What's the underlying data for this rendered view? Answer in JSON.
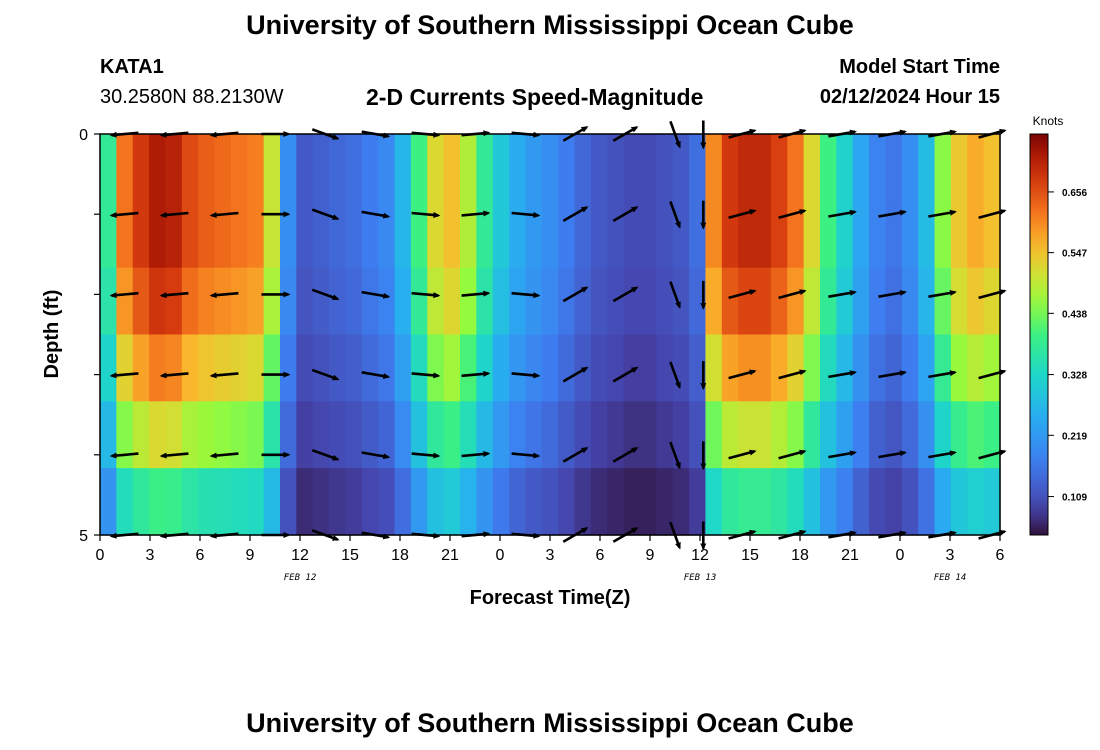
{
  "header": {
    "title": "University of Southern Mississippi Ocean Cube",
    "station": "KATA1",
    "coordinates": "30.2580N  88.2130W",
    "subtitle": "2-D Currents Speed-Magnitude",
    "start_label": "Model Start Time",
    "start_value": "02/12/2024 Hour 15"
  },
  "footer": {
    "title": "University of Southern Mississippi Ocean Cube"
  },
  "chart_data": {
    "type": "heatmap",
    "title": "2-D Currents Speed-Magnitude",
    "xlabel": "Forecast Time(Z)",
    "ylabel": "Depth (ft)",
    "x_tick_labels": [
      "0",
      "3",
      "6",
      "9",
      "12",
      "15",
      "18",
      "21",
      "0",
      "3",
      "6",
      "9",
      "12",
      "15",
      "18",
      "21",
      "0",
      "3",
      "6"
    ],
    "x_range_hours": [
      0,
      54
    ],
    "date_labels": [
      {
        "label": "FEB 12",
        "hour": 12
      },
      {
        "label": "FEB 13",
        "hour": 36
      },
      {
        "label": "FEB 14",
        "hour": 51
      }
    ],
    "y_tick_labels": [
      "0",
      "5"
    ],
    "y_range_ft": [
      0,
      5
    ],
    "depth_levels_ft": [
      0,
      1,
      2,
      3,
      4,
      5
    ],
    "colorbar": {
      "unit": "Knots",
      "tick_values": [
        "0.656",
        "0.547",
        "0.438",
        "0.328",
        "0.219",
        "0.109"
      ],
      "range": [
        0.04,
        0.76
      ]
    },
    "hours": [
      0,
      1,
      2,
      3,
      4,
      5,
      6,
      7,
      8,
      9,
      10,
      11,
      12,
      13,
      14,
      15,
      16,
      17,
      18,
      19,
      20,
      21,
      22,
      23,
      24,
      25,
      26,
      27,
      28,
      29,
      30,
      31,
      32,
      33,
      34,
      35,
      36,
      37,
      38,
      39,
      40,
      41,
      42,
      43,
      44,
      45,
      46,
      47,
      48,
      49,
      50,
      51,
      52,
      53,
      54
    ],
    "speed_profile_knots": [
      0.38,
      0.62,
      0.68,
      0.72,
      0.71,
      0.66,
      0.64,
      0.63,
      0.62,
      0.61,
      0.5,
      0.2,
      0.12,
      0.13,
      0.14,
      0.15,
      0.17,
      0.19,
      0.27,
      0.4,
      0.52,
      0.55,
      0.48,
      0.38,
      0.3,
      0.25,
      0.22,
      0.2,
      0.17,
      0.14,
      0.12,
      0.11,
      0.1,
      0.1,
      0.11,
      0.12,
      0.15,
      0.6,
      0.68,
      0.7,
      0.7,
      0.67,
      0.62,
      0.52,
      0.4,
      0.32,
      0.24,
      0.18,
      0.16,
      0.2,
      0.28,
      0.45,
      0.54,
      0.57,
      0.55
    ],
    "depth_factor": [
      1.0,
      1.0,
      0.95,
      0.85,
      0.72,
      0.55
    ],
    "arrow_hours": [
      1.5,
      4.5,
      7.5,
      10.5,
      13.5,
      16.5,
      19.5,
      22.5,
      25.5,
      28.5,
      31.5,
      34.5,
      36.2,
      38.5,
      41.5,
      44.5,
      47.5,
      50.5,
      53.5
    ],
    "arrow_directions_deg": [
      175,
      175,
      175,
      0,
      20,
      10,
      5,
      -5,
      5,
      -30,
      -30,
      70,
      90,
      -15,
      -15,
      -10,
      -10,
      -10,
      -15
    ]
  }
}
